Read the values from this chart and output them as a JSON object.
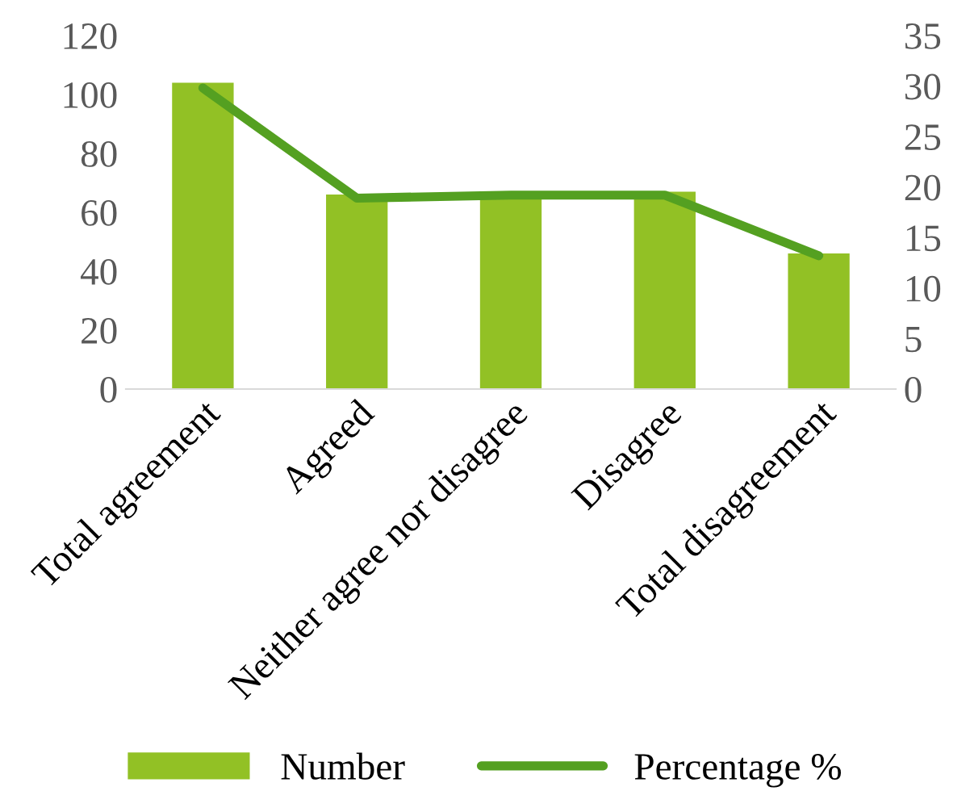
{
  "chart_data": {
    "type": "bar",
    "categories": [
      "Total agreement",
      "Agreed",
      "Neither agree nor disagree",
      "Disagree",
      "Total disagreement"
    ],
    "series": [
      {
        "name": "Number",
        "color": "#92c125",
        "values": [
          104,
          66,
          66,
          67,
          46
        ]
      },
      {
        "name": "Percentage %",
        "type": "line",
        "axis": "y2",
        "color": "#54a021",
        "values": [
          29.8,
          18.9,
          19.2,
          19.2,
          13.2
        ]
      }
    ],
    "ylim": [
      0,
      120
    ],
    "yticks": [
      0,
      20,
      40,
      60,
      80,
      100,
      120
    ],
    "y2lim": [
      0,
      35
    ],
    "y2ticks": [
      0,
      5,
      10,
      15,
      20,
      25,
      30,
      35
    ],
    "grid": false,
    "legend": "bottom",
    "marker": "none",
    "line_style": "solid"
  }
}
